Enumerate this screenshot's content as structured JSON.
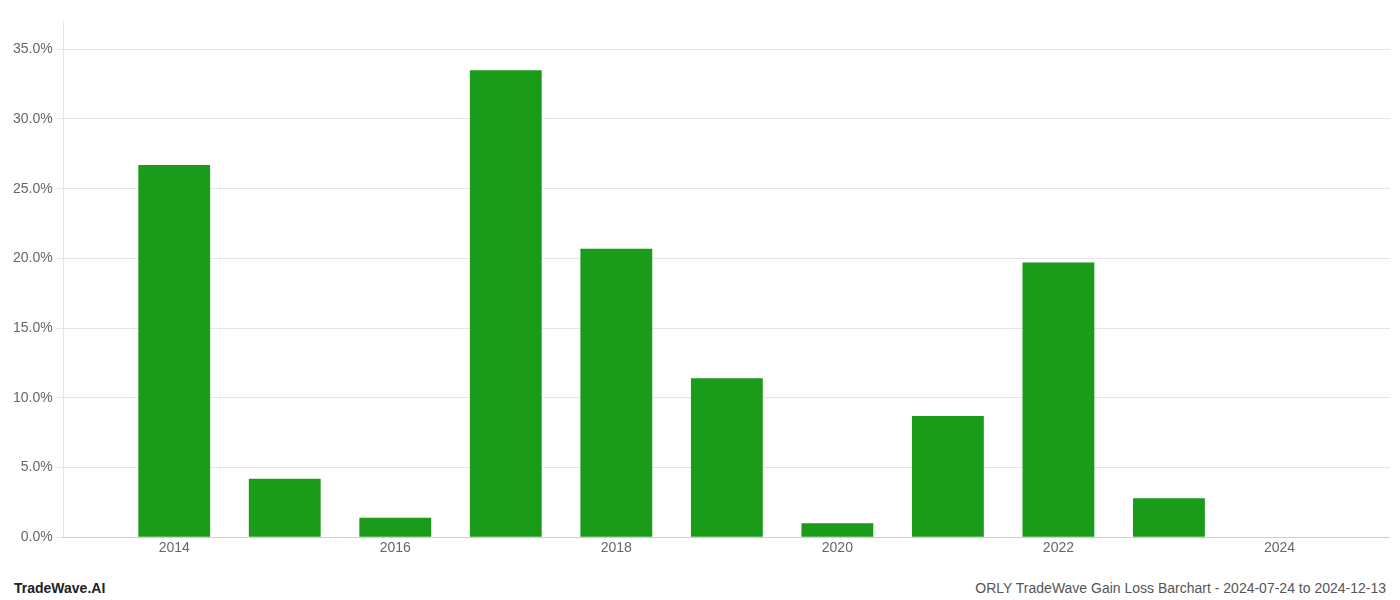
{
  "chart_data": {
    "type": "bar",
    "x": [
      2014,
      2015,
      2016,
      2017,
      2018,
      2019,
      2020,
      2021,
      2022,
      2023,
      2024
    ],
    "values": [
      0.267,
      0.042,
      0.014,
      0.335,
      0.207,
      0.114,
      0.01,
      0.087,
      0.197,
      0.028,
      0.0
    ],
    "color": "#1a9b1a",
    "xlim": [
      2013,
      2025
    ],
    "xticks": [
      2014,
      2016,
      2018,
      2020,
      2022,
      2024
    ],
    "ylim": [
      0,
      0.37
    ],
    "yticks": [
      {
        "value": 0.0,
        "label": "0.0%"
      },
      {
        "value": 0.05,
        "label": "5.0%"
      },
      {
        "value": 0.1,
        "label": "10.0%"
      },
      {
        "value": 0.15,
        "label": "15.0%"
      },
      {
        "value": 0.2,
        "label": "20.0%"
      },
      {
        "value": 0.25,
        "label": "25.0%"
      },
      {
        "value": 0.3,
        "label": "30.0%"
      },
      {
        "value": 0.35,
        "label": "35.0%"
      }
    ],
    "grid": true,
    "annotations": [
      "TradeWave.AI",
      "ORLY TradeWave Gain Loss Barchart - 2024-07-24 to 2024-12-13"
    ]
  }
}
